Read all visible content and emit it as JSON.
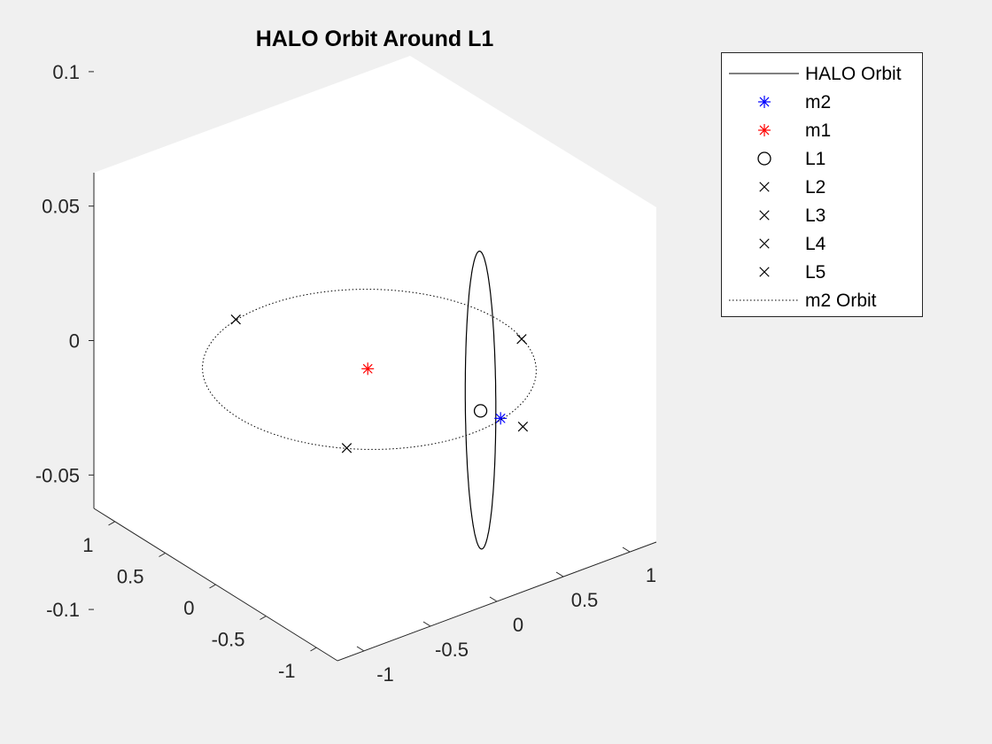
{
  "chart_data": {
    "type": "line3d",
    "title": "HALO Orbit Around L1",
    "xlabel": "",
    "ylabel": "",
    "zlabel": "",
    "xlim": [
      -1.2,
      1.2
    ],
    "ylim": [
      -1.2,
      1.2
    ],
    "zlim": [
      -0.125,
      0.125
    ],
    "x_ticks": [
      -1,
      -0.5,
      0,
      0.5,
      1
    ],
    "y_ticks": [
      -1,
      -0.5,
      0,
      0.5,
      1
    ],
    "z_ticks": [
      -0.1,
      -0.05,
      0,
      0.05,
      0.1
    ],
    "x_tick_labels": [
      "-1",
      "-0.5",
      "0",
      "0.5",
      "1"
    ],
    "y_tick_labels": [
      "-1",
      "-0.5",
      "0",
      "0.5",
      "1"
    ],
    "z_tick_labels": [
      "-0.1",
      "-0.05",
      "0",
      "0.05",
      "0.1"
    ],
    "grid": false,
    "legend_position": "outside-top-right",
    "series": [
      {
        "name": "HALO Orbit",
        "kind": "line",
        "style": "solid",
        "color": "#000000",
        "center": [
          0.837,
          0,
          0
        ],
        "x_amplitude": 0.05,
        "y_amplitude": 0.15,
        "z_amplitude": 0.055
      },
      {
        "name": "m2",
        "kind": "marker",
        "marker": "asterisk",
        "color": "#0000ff",
        "point": [
          0.988,
          0,
          0
        ]
      },
      {
        "name": "m1",
        "kind": "marker",
        "marker": "asterisk",
        "color": "#ff0000",
        "point": [
          -0.012,
          0,
          0
        ]
      },
      {
        "name": "L1",
        "kind": "marker",
        "marker": "circle",
        "color": "#000000",
        "point": [
          0.837,
          0,
          0
        ]
      },
      {
        "name": "L2",
        "kind": "marker",
        "marker": "x",
        "color": "#000000",
        "point": [
          1.156,
          0,
          0
        ]
      },
      {
        "name": "L3",
        "kind": "marker",
        "marker": "x",
        "color": "#000000",
        "point": [
          -1.005,
          0,
          0
        ]
      },
      {
        "name": "L4",
        "kind": "marker",
        "marker": "x",
        "color": "#000000",
        "point": [
          0.488,
          0.866,
          0
        ]
      },
      {
        "name": "L5",
        "kind": "marker",
        "marker": "x",
        "color": "#000000",
        "point": [
          0.488,
          -0.866,
          0
        ]
      },
      {
        "name": "m2 Orbit",
        "kind": "line",
        "style": "dotted",
        "color": "#000000",
        "radius": 1.0
      }
    ]
  }
}
